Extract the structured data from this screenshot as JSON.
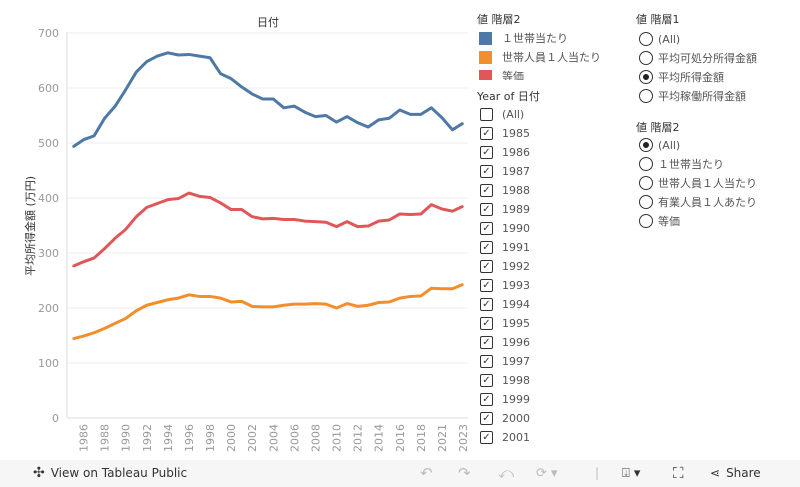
{
  "chart_data": {
    "type": "line",
    "title": "日付",
    "ylabel": "平均所得金額 (万円)",
    "xlabel": "",
    "ylim": [
      0,
      700
    ],
    "yticks": [
      "0",
      "100",
      "200",
      "300",
      "400",
      "500",
      "600",
      "700"
    ],
    "grid": true,
    "x": [
      1985,
      1986,
      1987,
      1988,
      1989,
      1990,
      1991,
      1992,
      1993,
      1994,
      1995,
      1996,
      1997,
      1998,
      1999,
      2000,
      2001,
      2002,
      2003,
      2004,
      2005,
      2006,
      2007,
      2008,
      2009,
      2010,
      2011,
      2012,
      2013,
      2014,
      2015,
      2016,
      2017,
      2018,
      2019,
      2021,
      2022,
      2023
    ],
    "xtick_labels": [
      "1986",
      "1988",
      "1990",
      "1992",
      "1994",
      "1996",
      "1998",
      "2000",
      "2002",
      "2004",
      "2006",
      "2008",
      "2010",
      "2012",
      "2014",
      "2016",
      "2018",
      "2021",
      "2023"
    ],
    "series": [
      {
        "name": "１世帯当たり",
        "color": "#4e79a7",
        "values": [
          493,
          506,
          513,
          545,
          567,
          597,
          629,
          648,
          658,
          664,
          660,
          661,
          658,
          655,
          626,
          617,
          602,
          589,
          580,
          580,
          564,
          567,
          556,
          548,
          550,
          538,
          548,
          537,
          529,
          542,
          545,
          560,
          552,
          552,
          564,
          546,
          524,
          536
        ]
      },
      {
        "name": "世帯人員１人当たり",
        "color": "#f28e2b",
        "values": [
          144,
          149,
          155,
          163,
          172,
          181,
          195,
          205,
          210,
          215,
          218,
          224,
          221,
          221,
          218,
          211,
          212,
          203,
          202,
          202,
          205,
          207,
          207,
          208,
          207,
          200,
          208,
          203,
          205,
          210,
          211,
          218,
          221,
          222,
          236,
          235,
          235,
          243
        ]
      },
      {
        "name": "等価",
        "color": "#e15759",
        "values": [
          276,
          284,
          291,
          308,
          327,
          343,
          366,
          383,
          390,
          397,
          399,
          409,
          403,
          401,
          391,
          379,
          379,
          366,
          362,
          363,
          361,
          361,
          358,
          357,
          356,
          348,
          357,
          348,
          349,
          358,
          360,
          371,
          370,
          371,
          388,
          380,
          376,
          385
        ]
      }
    ]
  },
  "legend": {
    "title": "値 階層2",
    "items": [
      {
        "label": "１世帯当たり",
        "color": "#4e79a7"
      },
      {
        "label": "世帯人員１人当たり",
        "color": "#f28e2b"
      },
      {
        "label": "等価",
        "color": "#e15759"
      }
    ]
  },
  "year_filter": {
    "title": "Year of 日付",
    "items": [
      {
        "label": "(All)",
        "checked": false
      },
      {
        "label": "1985",
        "checked": true
      },
      {
        "label": "1986",
        "checked": true
      },
      {
        "label": "1987",
        "checked": true
      },
      {
        "label": "1988",
        "checked": true
      },
      {
        "label": "1989",
        "checked": true
      },
      {
        "label": "1990",
        "checked": true
      },
      {
        "label": "1991",
        "checked": true
      },
      {
        "label": "1992",
        "checked": true
      },
      {
        "label": "1993",
        "checked": true
      },
      {
        "label": "1994",
        "checked": true
      },
      {
        "label": "1995",
        "checked": true
      },
      {
        "label": "1996",
        "checked": true
      },
      {
        "label": "1997",
        "checked": true
      },
      {
        "label": "1998",
        "checked": true
      },
      {
        "label": "1999",
        "checked": true
      },
      {
        "label": "2000",
        "checked": true
      },
      {
        "label": "2001",
        "checked": true
      }
    ]
  },
  "level1_filter": {
    "title": "値 階層1",
    "items": [
      {
        "label": "(All)",
        "selected": false
      },
      {
        "label": "平均可処分所得金額",
        "selected": false
      },
      {
        "label": "平均所得金額",
        "selected": true
      },
      {
        "label": "平均稼働所得金額",
        "selected": false
      }
    ]
  },
  "level2_filter": {
    "title": "値 階層2",
    "items": [
      {
        "label": "(All)",
        "selected": true
      },
      {
        "label": "１世帯当たり",
        "selected": false
      },
      {
        "label": "世帯人員１人当たり",
        "selected": false
      },
      {
        "label": "有業人員１人あたり",
        "selected": false
      },
      {
        "label": "等価",
        "selected": false
      }
    ]
  },
  "toolbar": {
    "view_label": "View on Tableau Public",
    "share_label": "Share"
  }
}
